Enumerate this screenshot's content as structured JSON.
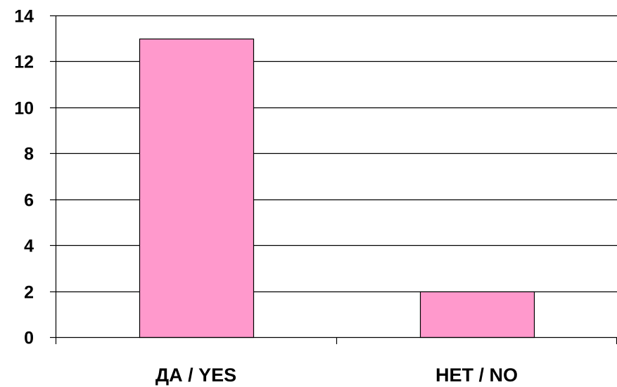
{
  "chart_data": {
    "type": "bar",
    "categories": [
      "ДА / YES",
      "НЕТ / NO"
    ],
    "values": [
      13,
      2
    ],
    "title": "",
    "xlabel": "",
    "ylabel": "",
    "ylim": [
      0,
      14
    ],
    "yticks": [
      "0",
      "2",
      "4",
      "6",
      "8",
      "10",
      "12",
      "14"
    ],
    "grid": true,
    "legend": "none",
    "bar_color": "#FF99CC",
    "bar_edge_color": "#000000",
    "grid_color": "#000000"
  }
}
